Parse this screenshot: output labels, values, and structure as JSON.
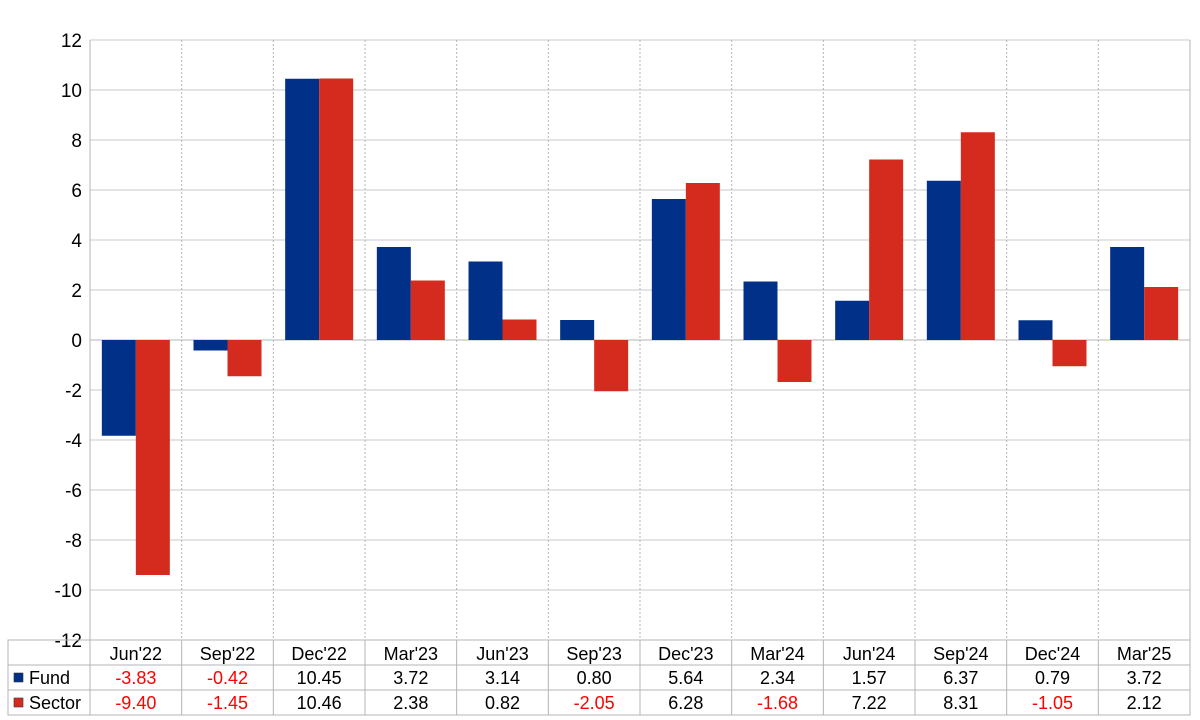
{
  "chart_data": {
    "type": "bar",
    "categories": [
      "Jun'22",
      "Sep'22",
      "Dec'22",
      "Mar'23",
      "Jun'23",
      "Sep'23",
      "Dec'23",
      "Mar'24",
      "Jun'24",
      "Sep'24",
      "Dec'24",
      "Mar'25"
    ],
    "series": [
      {
        "name": "Fund",
        "color": "#003087",
        "values": [
          -3.83,
          -0.42,
          10.45,
          3.72,
          3.14,
          0.8,
          5.64,
          2.34,
          1.57,
          6.37,
          0.79,
          3.72
        ],
        "labels": [
          "-3.83",
          "-0.42",
          "10.45",
          "3.72",
          "3.14",
          "0.80",
          "5.64",
          "2.34",
          "1.57",
          "6.37",
          "0.79",
          "3.72"
        ]
      },
      {
        "name": "Sector",
        "color": "#d52b1e",
        "values": [
          -9.4,
          -1.45,
          10.46,
          2.38,
          0.82,
          -2.05,
          6.28,
          -1.68,
          7.22,
          8.31,
          -1.05,
          2.12
        ],
        "labels": [
          "-9.40",
          "-1.45",
          "10.46",
          "2.38",
          "0.82",
          "-2.05",
          "6.28",
          "-1.68",
          "7.22",
          "8.31",
          "-1.05",
          "2.12"
        ]
      }
    ],
    "ylim": [
      -12,
      12
    ],
    "yticks": [
      -12,
      -10,
      -8,
      -6,
      -4,
      -2,
      0,
      2,
      4,
      6,
      8,
      10,
      12
    ],
    "grid": true,
    "legend": "data-table-below",
    "negative_label_color": "#ff0000",
    "positive_label_color": "#000000",
    "title": "",
    "xlabel": "",
    "ylabel": ""
  }
}
